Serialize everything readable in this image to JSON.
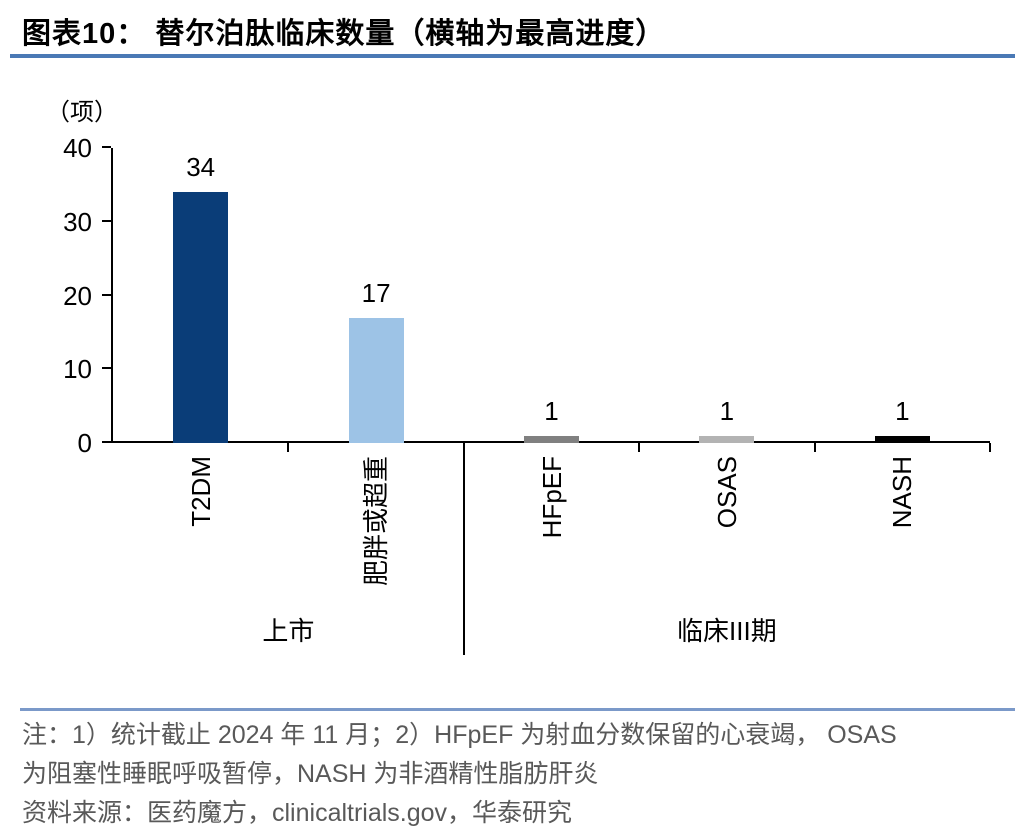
{
  "chart_data": {
    "type": "bar",
    "title": "图表10：  替尔泊肽临床数量（横轴为最高进度）",
    "unit_label": "（项）",
    "categories": [
      "T2DM",
      "肥胖或超重",
      "HFpEF",
      "OSAS",
      "NASH"
    ],
    "values": [
      34,
      17,
      1,
      1,
      1
    ],
    "data_labels": [
      "34",
      "17",
      "1",
      "1",
      "1"
    ],
    "bar_colors": [
      "#0a3d78",
      "#9dc3e6",
      "#808080",
      "#b3b3b3",
      "#000000"
    ],
    "groups": [
      {
        "label": "上市",
        "start": 0,
        "end": 2
      },
      {
        "label": "临床III期",
        "start": 2,
        "end": 5
      }
    ],
    "ylim": [
      0,
      40
    ],
    "yticks": [
      0,
      10,
      20,
      30,
      40
    ],
    "grid": false,
    "legend_position": "none",
    "axis_color": "#000000"
  },
  "notes": {
    "line1": "注：1）统计截止 2024 年 11 月；2）HFpEF 为射血分数保留的心衰竭， OSAS",
    "line2": "为阻塞性睡眠呼吸暂停，NASH 为非酒精性脂肪肝炎",
    "line3": "资料来源：医药魔方，clinicaltrials.gov，华泰研究"
  },
  "colors": {
    "title_rule": "#4a79b5",
    "note_rule": "#7b99c9",
    "note_text": "#595959",
    "axis": "#000000"
  }
}
